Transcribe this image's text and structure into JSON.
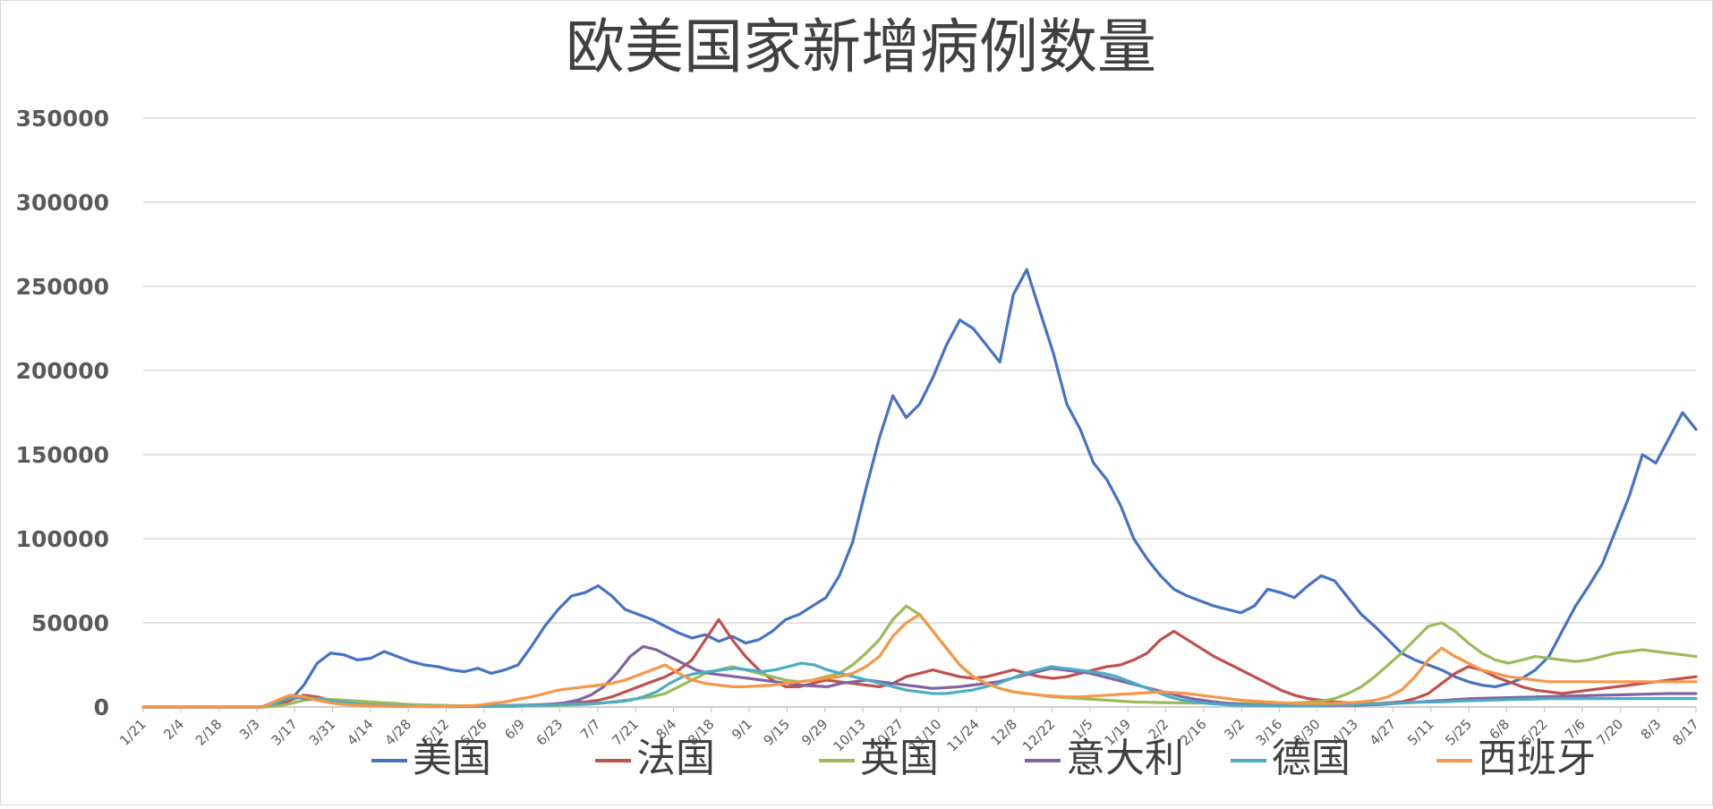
{
  "chart_data": {
    "type": "line",
    "title": "欧美国家新增病例数量",
    "xlabel": "",
    "ylabel": "",
    "ylim": [
      0,
      350000
    ],
    "yticks": [
      "0",
      "50000",
      "100000",
      "150000",
      "200000",
      "250000",
      "300000",
      "350000"
    ],
    "grid": true,
    "legend_position": "bottom",
    "x_tick_labels": [
      "1/21",
      "2/4",
      "2/18",
      "3/3",
      "3/17",
      "3/31",
      "4/14",
      "4/28",
      "5/12",
      "5/26",
      "6/9",
      "6/23",
      "7/7",
      "7/21",
      "8/4",
      "8/18",
      "9/1",
      "9/15",
      "9/29",
      "10/13",
      "10/27",
      "11/10",
      "11/24",
      "12/8",
      "12/22",
      "1/5",
      "1/19",
      "2/2",
      "2/16",
      "3/2",
      "3/16",
      "3/30",
      "4/13",
      "4/27",
      "5/11",
      "5/25",
      "6/8",
      "6/22",
      "7/6",
      "7/20",
      "8/3",
      "8/17"
    ],
    "x_tick_step_days": 14,
    "series": [
      {
        "name": "美国",
        "color": "#4472C4",
        "values": [
          0,
          0,
          0,
          0,
          0,
          0,
          0,
          0,
          0,
          0,
          1000,
          4000,
          13000,
          26000,
          32000,
          31000,
          28000,
          29000,
          33000,
          30000,
          27000,
          25000,
          24000,
          22000,
          21000,
          23000,
          20000,
          22000,
          25000,
          36000,
          48000,
          58000,
          66000,
          68000,
          72000,
          66000,
          58000,
          55000,
          52000,
          48000,
          44000,
          41000,
          43000,
          39000,
          42000,
          38000,
          40000,
          45000,
          52000,
          55000,
          60000,
          65000,
          78000,
          98000,
          130000,
          160000,
          185000,
          172000,
          180000,
          196000,
          215000,
          230000,
          225000,
          215000,
          205000,
          245000,
          260000,
          235000,
          210000,
          180000,
          165000,
          145000,
          135000,
          120000,
          100000,
          88000,
          78000,
          70000,
          66000,
          63000,
          60000,
          58000,
          56000,
          60000,
          70000,
          68000,
          65000,
          72000,
          78000,
          75000,
          65000,
          55000,
          48000,
          40000,
          32000,
          28000,
          25000,
          22000,
          18000,
          15000,
          13000,
          12000,
          14000,
          17000,
          22000,
          30000,
          45000,
          60000,
          72000,
          85000,
          105000,
          125000,
          150000,
          145000,
          160000,
          175000,
          165000
        ]
      },
      {
        "name": "法国",
        "color": "#C0504D",
        "values": [
          0,
          0,
          0,
          0,
          0,
          0,
          0,
          0,
          0,
          0,
          1000,
          4000,
          7000,
          6000,
          4000,
          2000,
          1500,
          1000,
          800,
          600,
          500,
          500,
          500,
          500,
          600,
          700,
          800,
          900,
          1000,
          1200,
          1500,
          2000,
          2500,
          3000,
          4000,
          6000,
          9000,
          12000,
          15000,
          18000,
          22000,
          28000,
          40000,
          52000,
          40000,
          30000,
          22000,
          16000,
          12000,
          12000,
          14000,
          16000,
          15000,
          14000,
          13000,
          12000,
          14000,
          18000,
          20000,
          22000,
          20000,
          18000,
          17000,
          18000,
          20000,
          22000,
          20000,
          18000,
          17000,
          18000,
          20000,
          22000,
          24000,
          25000,
          28000,
          32000,
          40000,
          45000,
          40000,
          35000,
          30000,
          26000,
          22000,
          18000,
          14000,
          10000,
          7000,
          5000,
          4000,
          3000,
          2500,
          2000,
          2000,
          2500,
          3000,
          5000,
          8000,
          14000,
          20000,
          24000,
          22000,
          18000,
          15000,
          12000,
          10000,
          9000,
          8000,
          9000,
          10000,
          11000,
          12000,
          13000,
          14000,
          15000,
          16000,
          17000,
          18000
        ]
      },
      {
        "name": "英国",
        "color": "#9BBB59",
        "values": [
          0,
          0,
          0,
          0,
          0,
          0,
          0,
          0,
          0,
          0,
          500,
          2000,
          4000,
          5000,
          4500,
          4000,
          3500,
          3000,
          2500,
          2000,
          1500,
          1200,
          1000,
          800,
          700,
          600,
          600,
          600,
          700,
          800,
          900,
          1000,
          1200,
          1500,
          2000,
          3000,
          4000,
          5000,
          6000,
          8000,
          12000,
          16000,
          20000,
          22000,
          24000,
          22000,
          20000,
          18000,
          16000,
          15000,
          16000,
          18000,
          20000,
          25000,
          32000,
          40000,
          52000,
          60000,
          55000,
          45000,
          35000,
          25000,
          18000,
          14000,
          11000,
          9000,
          8000,
          7000,
          6000,
          5500,
          5000,
          4500,
          4000,
          3500,
          3000,
          2800,
          2600,
          2500,
          2400,
          2300,
          2200,
          2100,
          2000,
          2000,
          2100,
          2200,
          2400,
          2800,
          3500,
          5000,
          8000,
          12000,
          18000,
          25000,
          32000,
          40000,
          48000,
          50000,
          45000,
          38000,
          32000,
          28000,
          26000,
          28000,
          30000,
          29000,
          28000,
          27000,
          28000,
          30000,
          32000,
          33000,
          34000,
          33000,
          32000,
          31000,
          30000
        ]
      },
      {
        "name": "意大利",
        "color": "#8064A2",
        "values": [
          0,
          0,
          0,
          0,
          0,
          0,
          0,
          0,
          0,
          0,
          3000,
          5500,
          5500,
          4500,
          3500,
          2500,
          1500,
          1000,
          700,
          400,
          300,
          250,
          200,
          200,
          200,
          250,
          300,
          400,
          500,
          800,
          1200,
          1600,
          2500,
          4000,
          7000,
          12000,
          20000,
          30000,
          36000,
          34000,
          30000,
          26000,
          22000,
          20000,
          19000,
          18000,
          17000,
          16000,
          15000,
          14000,
          13000,
          12500,
          12000,
          14000,
          15000,
          16000,
          15000,
          14000,
          13000,
          12000,
          11000,
          11500,
          12000,
          13000,
          14000,
          15000,
          17000,
          19000,
          21000,
          23000,
          22000,
          21000,
          20000,
          18000,
          16000,
          14000,
          12000,
          10000,
          8000,
          6000,
          4500,
          3500,
          2500,
          1800,
          1300,
          1000,
          900,
          800,
          700,
          700,
          800,
          900,
          1000,
          1200,
          1500,
          2000,
          2500,
          3000,
          3500,
          4000,
          4500,
          5000,
          5200,
          5400,
          5600,
          5800,
          6000,
          6200,
          6400,
          6600,
          6800,
          7000,
          7200,
          7400,
          7600,
          7800,
          8000,
          8000,
          8000
        ]
      },
      {
        "name": "德国",
        "color": "#4BACC6",
        "values": [
          0,
          0,
          0,
          0,
          0,
          0,
          0,
          0,
          0,
          0,
          2000,
          5000,
          6000,
          5000,
          4000,
          3000,
          2000,
          1500,
          1000,
          800,
          600,
          500,
          400,
          400,
          400,
          450,
          500,
          600,
          700,
          800,
          1000,
          1200,
          1500,
          1800,
          2000,
          2500,
          3000,
          4000,
          6000,
          9000,
          14000,
          18000,
          20000,
          21000,
          22000,
          23000,
          22000,
          21000,
          22000,
          24000,
          26000,
          25000,
          22000,
          20000,
          18000,
          16000,
          14000,
          12000,
          10000,
          9000,
          8000,
          8000,
          9000,
          10000,
          12000,
          14000,
          17000,
          20000,
          22000,
          24000,
          23000,
          22000,
          21000,
          20000,
          18000,
          15000,
          12000,
          9000,
          6000,
          4000,
          3000,
          2000,
          1500,
          1000,
          800,
          700,
          600,
          600,
          700,
          800,
          1000,
          1200,
          1500,
          1800,
          2000,
          2200,
          2500,
          2800,
          3000,
          3200,
          3500,
          3800,
          4000,
          4200,
          4400,
          4600,
          4800,
          5000,
          5000,
          5000,
          5000,
          5000,
          5000,
          5000,
          5000,
          5000,
          5000,
          5000,
          5000
        ]
      },
      {
        "name": "西班牙",
        "color": "#F79646",
        "values": [
          0,
          0,
          0,
          0,
          0,
          0,
          0,
          0,
          0,
          0,
          4000,
          7000,
          6000,
          4000,
          2500,
          1500,
          1000,
          700,
          500,
          400,
          300,
          300,
          300,
          400,
          600,
          1000,
          2000,
          3000,
          4500,
          6000,
          8000,
          10000,
          11000,
          12000,
          13000,
          14000,
          16000,
          19000,
          22000,
          25000,
          20000,
          16000,
          14000,
          13000,
          12000,
          12000,
          12500,
          13000,
          14000,
          15000,
          16000,
          17000,
          18000,
          20000,
          24000,
          30000,
          42000,
          50000,
          55000,
          45000,
          35000,
          25000,
          18000,
          14000,
          11000,
          9000,
          8000,
          7000,
          6500,
          6000,
          6000,
          6500,
          7000,
          7500,
          8000,
          8500,
          9000,
          8500,
          8000,
          7000,
          6000,
          5000,
          4000,
          3500,
          3000,
          2500,
          2200,
          2000,
          2000,
          2200,
          2500,
          3000,
          4000,
          6000,
          10000,
          18000,
          28000,
          35000,
          30000,
          26000,
          22000,
          20000,
          18000,
          17000,
          16000,
          15000,
          15000,
          15000,
          15000,
          15000,
          15000,
          15000,
          15000,
          15000,
          15000,
          15000,
          15000
        ]
      }
    ]
  }
}
